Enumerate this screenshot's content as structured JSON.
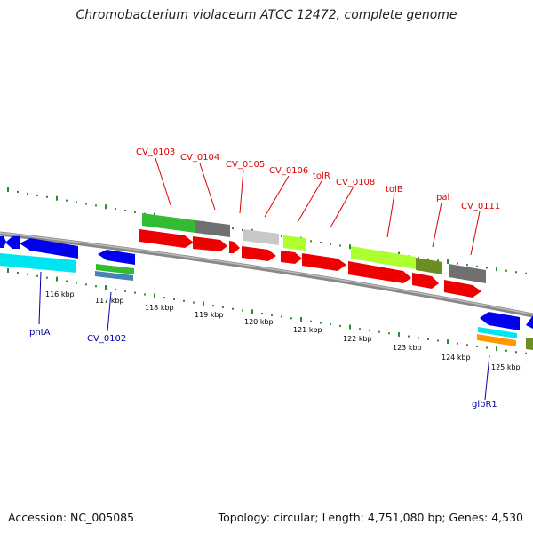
{
  "title": "Chromobacterium violaceum ATCC 12472, complete genome",
  "footer": {
    "accession": "Accession: NC_005085",
    "stats": "Topology: circular; Length: 4,751,080 bp; Genes: 4,530"
  },
  "colors": {
    "label_top": "#dd0000",
    "label_bottom": "#0000aa",
    "backbone": "#888888",
    "ticks": "#2e8b2e",
    "red_gene": "#ee0000",
    "blue_gene": "#0000ee",
    "cyan_gene": "#00e5f0",
    "green_gene": "#33bb33",
    "olive_gene": "#6b8e23",
    "lime_gene": "#adff2f",
    "gray_gene": "#707070",
    "light_gray_gene": "#c8c8c8",
    "orange_gene": "#ff9900",
    "steel_gene": "#4682b4"
  },
  "scale_labels": [
    "116 kbp",
    "117 kbp",
    "118 kbp",
    "119 kbp",
    "120 kbp",
    "121 kbp",
    "122 kbp",
    "123 kbp",
    "124 kbp",
    "125 kbp"
  ],
  "top_gene_labels": [
    "CV_0103",
    "CV_0104",
    "CV_0105",
    "CV_0106",
    "tolR",
    "CV_0108",
    "tolB",
    "pal",
    "CV_0111"
  ],
  "bottom_gene_labels": [
    "pntA",
    "CV_0102",
    "glpR1"
  ]
}
